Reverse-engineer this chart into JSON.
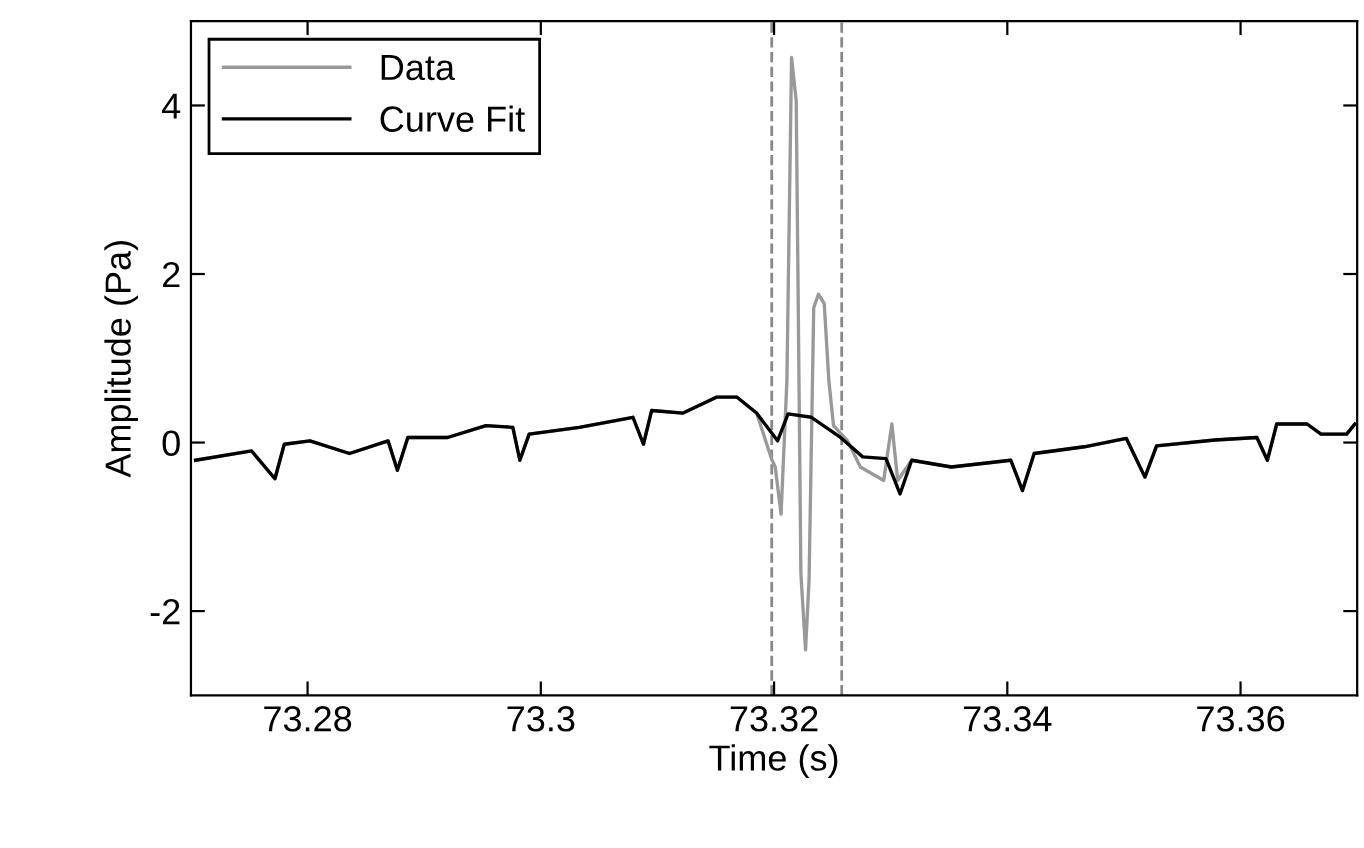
{
  "chart_data": {
    "type": "line",
    "xlabel": "Time (s)",
    "ylabel": "Amplitude (Pa)",
    "xlim": [
      73.27,
      73.37
    ],
    "ylim": [
      -3,
      5
    ],
    "xticks": [
      73.28,
      73.3,
      73.32,
      73.34,
      73.36
    ],
    "yticks": [
      -2,
      0,
      2,
      4
    ],
    "grid": false,
    "legend": "top left",
    "marker": "none",
    "line_style": "solid",
    "ref_lines": [
      {
        "axis": "x",
        "value": 73.3198,
        "color": "#888888",
        "line_style": "dashed"
      },
      {
        "axis": "x",
        "value": 73.3258,
        "color": "#888888",
        "line_style": "dashed"
      }
    ],
    "series": [
      {
        "name": "Data",
        "color": "#999999",
        "x": [
          73.2704,
          73.2752,
          73.2772,
          73.278,
          73.2802,
          73.2836,
          73.2869,
          73.2877,
          73.2886,
          73.292,
          73.2953,
          73.2976,
          73.2982,
          73.299,
          73.3033,
          73.3079,
          73.3088,
          73.3095,
          73.3122,
          73.3151,
          73.3168,
          73.3185,
          73.3198,
          73.3201,
          73.3206,
          73.3211,
          73.3215,
          73.3219,
          73.3223,
          73.3227,
          73.323,
          73.3234,
          73.3238,
          73.3243,
          73.3247,
          73.3251,
          73.3263,
          73.3274,
          73.3294,
          73.3301,
          73.3306,
          73.3318,
          73.3352,
          73.3403,
          73.3413,
          73.3423,
          73.3466,
          73.3502,
          73.3518,
          73.3528,
          73.3578,
          73.3614,
          73.3623,
          73.3631,
          73.3657,
          73.3669,
          73.3691,
          73.3698
        ],
        "values": [
          -0.21,
          -0.1,
          -0.43,
          -0.02,
          0.02,
          -0.13,
          0.02,
          -0.33,
          0.06,
          0.06,
          0.2,
          0.18,
          -0.21,
          0.1,
          0.18,
          0.3,
          -0.02,
          0.38,
          0.35,
          0.54,
          0.54,
          0.35,
          -0.2,
          -0.29,
          -0.85,
          0.73,
          4.57,
          4.05,
          -1.56,
          -2.46,
          -1.63,
          1.6,
          1.76,
          1.65,
          0.73,
          0.2,
          0.02,
          -0.29,
          -0.45,
          0.22,
          -0.45,
          -0.21,
          -0.29,
          -0.21,
          -0.57,
          -0.13,
          -0.05,
          0.05,
          -0.41,
          -0.04,
          0.03,
          0.06,
          -0.21,
          0.22,
          0.22,
          0.1,
          0.1,
          0.22
        ]
      },
      {
        "name": "Curve Fit",
        "color": "#000000",
        "x": [
          73.2704,
          73.2752,
          73.2772,
          73.278,
          73.2802,
          73.2836,
          73.2869,
          73.2877,
          73.2886,
          73.292,
          73.2953,
          73.2976,
          73.2982,
          73.299,
          73.3033,
          73.3079,
          73.3088,
          73.3095,
          73.3122,
          73.3151,
          73.3168,
          73.3185,
          73.3203,
          73.3212,
          73.3232,
          73.3257,
          73.3276,
          73.3296,
          73.3308,
          73.3318,
          73.3352,
          73.3403,
          73.3413,
          73.3423,
          73.3466,
          73.3502,
          73.3518,
          73.3528,
          73.3578,
          73.3614,
          73.3623,
          73.3631,
          73.3657,
          73.3669,
          73.3691,
          73.3698
        ],
        "values": [
          -0.21,
          -0.1,
          -0.43,
          -0.02,
          0.02,
          -0.13,
          0.02,
          -0.33,
          0.06,
          0.06,
          0.2,
          0.18,
          -0.21,
          0.1,
          0.18,
          0.3,
          -0.02,
          0.38,
          0.35,
          0.54,
          0.54,
          0.35,
          0.02,
          0.34,
          0.3,
          0.06,
          -0.17,
          -0.19,
          -0.61,
          -0.21,
          -0.29,
          -0.21,
          -0.57,
          -0.13,
          -0.05,
          0.05,
          -0.41,
          -0.04,
          0.03,
          0.06,
          -0.21,
          0.22,
          0.22,
          0.1,
          0.1,
          0.22
        ]
      }
    ]
  }
}
